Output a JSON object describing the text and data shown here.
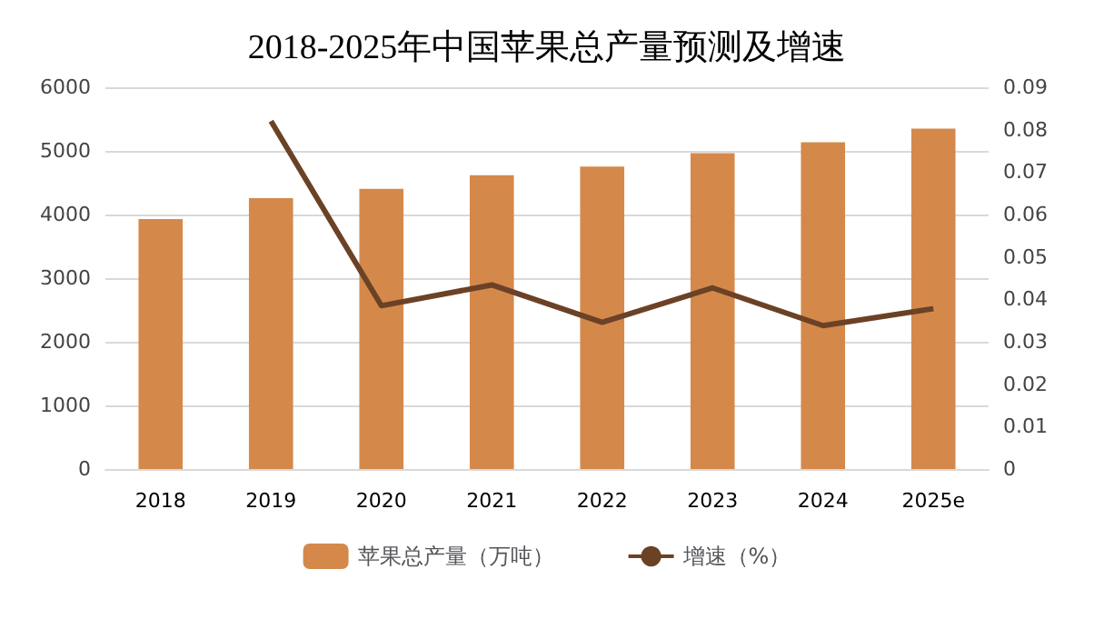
{
  "chart_data": {
    "type": "bar",
    "title": "2018-2025年中国苹果总产量预测及增速",
    "categories": [
      "2018",
      "2019",
      "2020",
      "2021",
      "2022",
      "2023",
      "2024",
      "2025e"
    ],
    "series": [
      {
        "name": "苹果总产量（万吨）",
        "color": "#d4894b",
        "values": [
          3930,
          4257,
          4403,
          4617,
          4752,
          4966,
          5135,
          5349
        ]
      },
      {
        "name": "增速（%）",
        "type": "line",
        "axis": "y2",
        "color": "#6b4226",
        "values": [
          null,
          0.082,
          0.0385,
          0.0434,
          0.0346,
          0.0427,
          0.0338,
          0.0378
        ]
      }
    ],
    "ylim": [
      0,
      6000
    ],
    "yticks": [
      0,
      1000,
      2000,
      3000,
      4000,
      5000,
      6000
    ],
    "y2lim": [
      0,
      0.09
    ],
    "y2ticks": [
      0,
      0.01,
      0.02,
      0.03,
      0.04,
      0.05,
      0.06,
      0.07,
      0.08,
      0.09
    ],
    "grid": "y",
    "legend": "bottom",
    "marker": "none",
    "line_style": "solid"
  }
}
